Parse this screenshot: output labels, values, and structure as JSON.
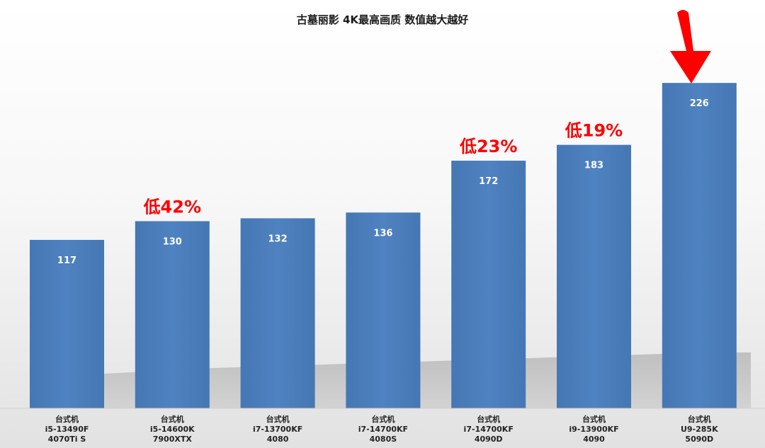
{
  "chart_data": {
    "type": "bar",
    "title": "古墓丽影 4K最高画质 数值越大越好",
    "categories": [
      [
        "台式机",
        "i5-13490F",
        "4070Ti S"
      ],
      [
        "台式机",
        "i5-14600K",
        "7900XTX"
      ],
      [
        "台式机",
        "i7-13700KF",
        "4080"
      ],
      [
        "台式机",
        "i7-14700KF",
        "4080S"
      ],
      [
        "台式机",
        "i7-14700KF",
        "4090D"
      ],
      [
        "台式机",
        "i9-13900KF",
        "4090"
      ],
      [
        "台式机",
        "U9-285K",
        "5090D"
      ]
    ],
    "values": [
      117,
      130,
      132,
      136,
      172,
      183,
      226
    ],
    "ylim": [
      0,
      260
    ],
    "grid": false,
    "legend": "none",
    "bar_color": "#4a7ebb",
    "annotations": [
      {
        "bar_index": 1,
        "text": "低42%"
      },
      {
        "bar_index": 4,
        "text": "低23%"
      },
      {
        "bar_index": 5,
        "text": "低19%"
      }
    ],
    "annotation_color": "#ff0000",
    "highlight": {
      "bar_index": 6,
      "marker": "red-down-arrow"
    }
  }
}
